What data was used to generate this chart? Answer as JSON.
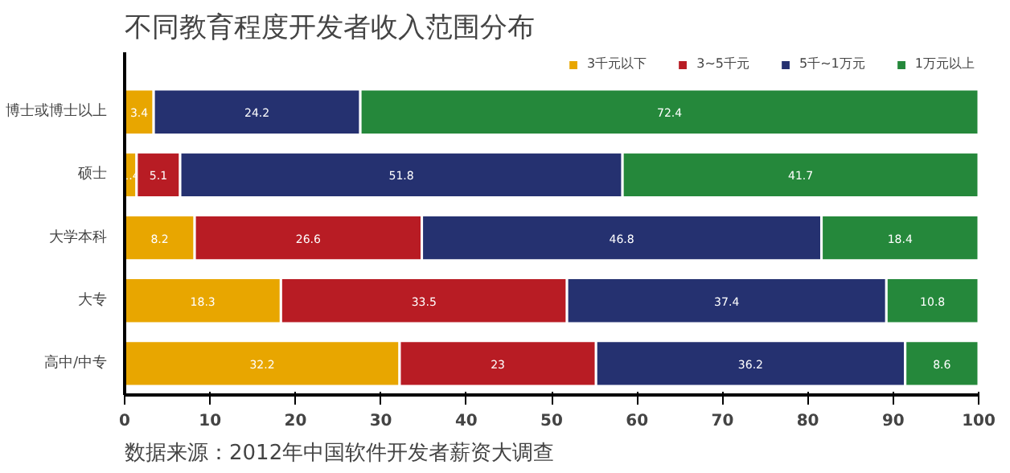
{
  "chart_data": {
    "type": "bar",
    "orientation": "horizontal",
    "stacked": true,
    "title": "不同教育程度开发者收入范围分布",
    "categories": [
      "博士或博士以上",
      "硕士",
      "大学本科",
      "大专",
      "高中/中专"
    ],
    "series": [
      {
        "name": "3千元以下",
        "color": "#e8a600",
        "values": [
          3.4,
          1.4,
          8.2,
          18.3,
          32.2
        ]
      },
      {
        "name": "3~5千元",
        "color": "#b81c24",
        "values": [
          null,
          5.1,
          26.6,
          33.5,
          23
        ]
      },
      {
        "name": "5千~1万元",
        "color": "#253170",
        "values": [
          24.2,
          51.8,
          46.8,
          37.4,
          36.2
        ]
      },
      {
        "name": "1万元以上",
        "color": "#25883b",
        "values": [
          72.4,
          41.7,
          18.4,
          10.8,
          8.6
        ]
      }
    ],
    "xlim": [
      0,
      100
    ],
    "xticks": [
      0,
      10,
      20,
      30,
      40,
      50,
      60,
      70,
      80,
      90,
      100
    ],
    "grid": false,
    "legend": "top right",
    "data_labels": true,
    "annotations": [
      "数据来源：2012年中国软件开发者薪资大调查"
    ]
  }
}
